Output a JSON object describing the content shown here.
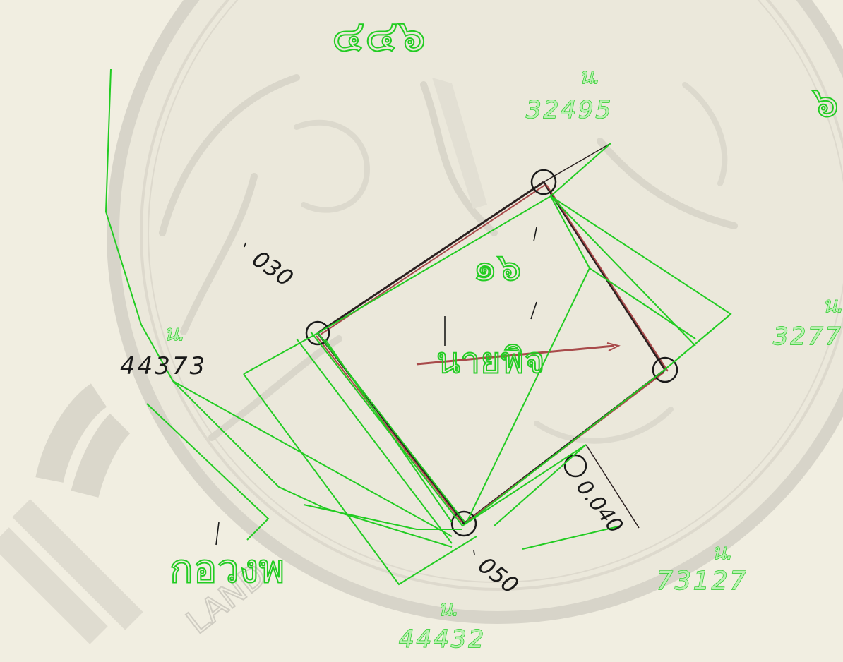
{
  "labels": {
    "parcel_number": "๑๖",
    "parcel_name": "นายพิจ",
    "page_number": "๔๔๖",
    "abbreviation": "๖",
    "district_label": "กอวงพ",
    "watermark": "LAND"
  },
  "neighbours": {
    "north": {
      "prefix": "น.",
      "number": "32495"
    },
    "west": {
      "prefix": "น.",
      "number": "44373"
    },
    "east": {
      "prefix": "น.",
      "number": "3277"
    },
    "south": {
      "prefix": "น.",
      "number": "44432"
    },
    "southeast": {
      "prefix": "น.",
      "number": "73127"
    }
  },
  "distances": {
    "north_west_edge": "030",
    "south_east_edge": "0.040",
    "south_edge": "050"
  },
  "colors": {
    "paper": "#f1eee1",
    "overlay_green": "#22cc22",
    "boundary_red": "#a84a4a",
    "ink": "#1a1a1a",
    "watermark": "#d7d4c9"
  }
}
